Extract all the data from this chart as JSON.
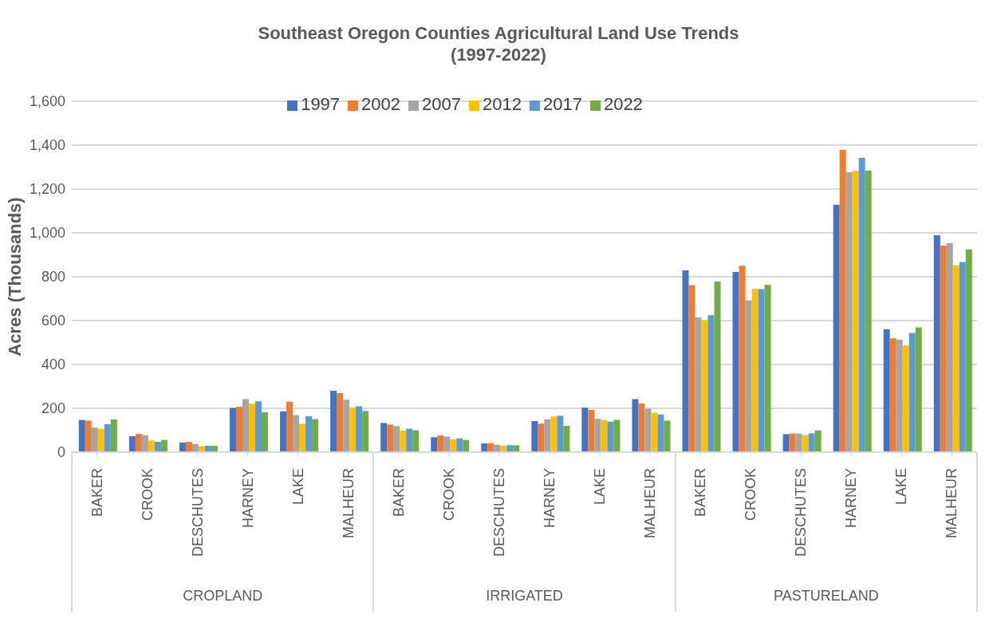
{
  "chart_data": {
    "type": "bar",
    "title": "Southeast Oregon Counties Agricultural Land Use Trends\n(1997-2022)",
    "ylabel": "Acres (Thousands)",
    "categories": [
      "BAKER",
      "CROOK",
      "DESCHUTES",
      "HARNEY",
      "LAKE",
      "MALHEUR",
      "BAKER",
      "CROOK",
      "DESCHUTES",
      "HARNEY",
      "LAKE",
      "MALHEUR",
      "BAKER",
      "CROOK",
      "DESCHUTES",
      "HARNEY",
      "LAKE",
      "MALHEUR"
    ],
    "annotations": [
      "CROPLAND",
      "IRRIGATED",
      "PASTURELAND"
    ],
    "series": [
      {
        "name": "1997",
        "color": "#4472c4",
        "values": [
          147,
          73,
          44,
          202,
          186,
          280,
          133,
          68,
          40,
          142,
          203,
          242,
          829,
          822,
          82,
          1128,
          561,
          989
        ]
      },
      {
        "name": "2002",
        "color": "#ed7d31",
        "values": [
          144,
          83,
          47,
          207,
          230,
          269,
          126,
          76,
          41,
          130,
          193,
          222,
          762,
          850,
          85,
          1379,
          519,
          942
        ]
      },
      {
        "name": "2007",
        "color": "#a5a5a5",
        "values": [
          112,
          77,
          37,
          242,
          169,
          239,
          119,
          71,
          34,
          149,
          152,
          198,
          615,
          692,
          85,
          1276,
          513,
          953
        ]
      },
      {
        "name": "2012",
        "color": "#ffc000",
        "values": [
          106,
          53,
          27,
          221,
          129,
          203,
          98,
          59,
          30,
          163,
          147,
          180,
          600,
          745,
          78,
          1282,
          486,
          853
        ]
      },
      {
        "name": "2017",
        "color": "#5b9bd5",
        "values": [
          128,
          47,
          29,
          232,
          164,
          209,
          107,
          63,
          32,
          166,
          139,
          172,
          625,
          744,
          86,
          1342,
          544,
          867
        ]
      },
      {
        "name": "2022",
        "color": "#70ad47",
        "values": [
          149,
          56,
          29,
          182,
          151,
          188,
          100,
          56,
          31,
          120,
          147,
          144,
          778,
          763,
          99,
          1284,
          569,
          925
        ]
      }
    ],
    "ylim": [
      0,
      1600
    ],
    "yticks": [
      0,
      200,
      400,
      600,
      800,
      {
        "value": 1000,
        "label": "1,000"
      },
      {
        "value": 1200,
        "label": "1,200"
      },
      {
        "value": 1400,
        "label": "1,400"
      },
      {
        "value": 1600,
        "label": "1,600"
      }
    ],
    "grid": "y",
    "legend": "top"
  }
}
